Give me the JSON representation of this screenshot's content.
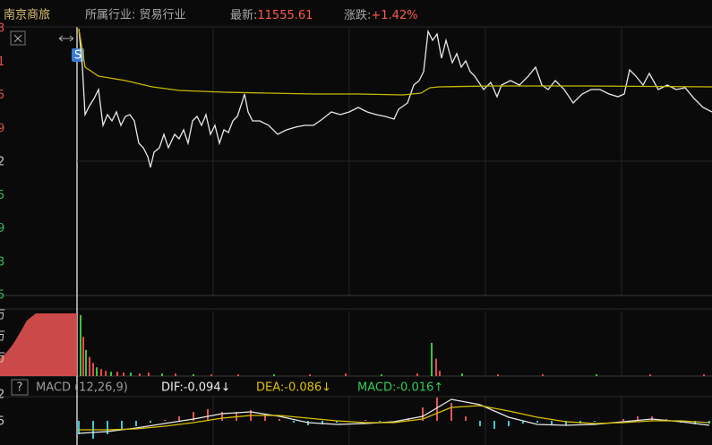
{
  "header": {
    "name": "南京商旅",
    "industry": "所属行业: 贸易行业",
    "latest_label": "最新:",
    "latest_value": "11555.61",
    "change_label": "涨跌:",
    "change_value": "+1.42%"
  },
  "price_axis_fragments": [
    "3",
    "1",
    "5",
    "9",
    "2",
    "5",
    "9",
    "3",
    "5"
  ],
  "volume_axis_fragments": [
    "万",
    "万",
    "万"
  ],
  "macd_axis_fragments": [
    "2",
    "5"
  ],
  "marker": "S",
  "macd_header": {
    "help": "?",
    "name": "MACD (12,26,9)",
    "dif": "DIF:-0.094↓",
    "dea": "DEA:-0.086↓",
    "macd": "MACD:-0.016↑"
  },
  "chart_data": [
    {
      "type": "line",
      "xlim": [
        0,
        710
      ],
      "ylim": [
        0,
        300
      ],
      "xticks": [
        152,
        304,
        456,
        608
      ],
      "yticks": [
        150,
        300
      ],
      "grid": true,
      "x": [
        2,
        6,
        9,
        14,
        19,
        24,
        29,
        34,
        39,
        44,
        49,
        54,
        59,
        64,
        69,
        74,
        79,
        82,
        86,
        92,
        97,
        102,
        109,
        114,
        119,
        124,
        129,
        134,
        139,
        144,
        149,
        154,
        159,
        164,
        169,
        174,
        179,
        184,
        187,
        191,
        196,
        204,
        214,
        224,
        234,
        244,
        254,
        264,
        274,
        284,
        294,
        304,
        314,
        324,
        334,
        344,
        354,
        359,
        369,
        376,
        382,
        387,
        392,
        397,
        402,
        407,
        412,
        419,
        424,
        429,
        434,
        439,
        444,
        454,
        462,
        469,
        474,
        484,
        494,
        504,
        512,
        519,
        526,
        534,
        544,
        554,
        564,
        574,
        584,
        594,
        604,
        611,
        617,
        624,
        632,
        639,
        649,
        659,
        669,
        679,
        689,
        699,
        709
      ],
      "series": [
        {
          "color": "#e8e8e8",
          "values": [
            298,
            255,
            202,
            212,
            220,
            230,
            190,
            202,
            195,
            205,
            190,
            200,
            202,
            195,
            170,
            165,
            155,
            143,
            160,
            165,
            180,
            165,
            180,
            175,
            185,
            170,
            195,
            200,
            190,
            202,
            180,
            190,
            170,
            185,
            182,
            195,
            200,
            215,
            225,
            205,
            195,
            195,
            190,
            180,
            185,
            188,
            190,
            190,
            197,
            205,
            202,
            205,
            210,
            205,
            202,
            200,
            197,
            208,
            215,
            235,
            240,
            250,
            295,
            285,
            292,
            265,
            285,
            260,
            270,
            255,
            262,
            250,
            245,
            230,
            238,
            222,
            235,
            240,
            235,
            245,
            255,
            235,
            230,
            240,
            230,
            215,
            225,
            230,
            230,
            225,
            222,
            225,
            252,
            245,
            235,
            248,
            230,
            235,
            230,
            232,
            220,
            210,
            205
          ]
        },
        {
          "color": "#c9b800",
          "x": [
            2,
            9,
            24,
            54,
            84,
            114,
            164,
            214,
            264,
            314,
            364,
            384,
            394,
            404,
            464,
            564,
            709
          ],
          "values": [
            298,
            255,
            245,
            240,
            233,
            229,
            227,
            226,
            225,
            225,
            224,
            226,
            232,
            233,
            234,
            234,
            233
          ]
        }
      ]
    },
    {
      "type": "bar",
      "xlim": [
        0,
        710
      ],
      "ylim": [
        0,
        75
      ],
      "xticks": [
        152,
        304,
        456,
        608
      ],
      "grid": true,
      "x": [
        4,
        7,
        10,
        14,
        18,
        22,
        27,
        32,
        38,
        45,
        52,
        60,
        70,
        80,
        95,
        110,
        130,
        150,
        180,
        220,
        260,
        300,
        340,
        380,
        396,
        401,
        405,
        430,
        470,
        520,
        580,
        640,
        700
      ],
      "values": [
        70,
        45,
        30,
        22,
        15,
        10,
        8,
        6,
        5,
        5,
        4,
        4,
        3,
        4,
        3,
        3,
        2,
        2,
        2,
        2,
        2,
        3,
        2,
        3,
        38,
        20,
        6,
        3,
        2,
        2,
        2,
        2,
        2
      ],
      "colors": [
        "#3fc43f",
        "#e84a4a",
        "#3fc43f",
        "#e84a4a",
        "#e84a4a",
        "#3fc43f",
        "#e84a4a",
        "#e84a4a",
        "#3fc43f",
        "#e84a4a",
        "#e84a4a",
        "#3fc43f",
        "#e84a4a",
        "#e84a4a",
        "#3fc43f",
        "#e84a4a",
        "#3fc43f",
        "#e84a4a",
        "#e84a4a",
        "#3fc43f",
        "#e84a4a",
        "#e84a4a",
        "#3fc43f",
        "#e84a4a",
        "#3fc43f",
        "#e84a4a",
        "#e84a4a",
        "#3fc43f",
        "#e84a4a",
        "#e84a4a",
        "#3fc43f",
        "#e84a4a",
        "#e84a4a"
      ]
    },
    {
      "type": "macd",
      "xlim": [
        0,
        710
      ],
      "ylim": [
        -27,
        27
      ],
      "xticks": [
        152,
        304,
        456,
        608
      ],
      "grid": true,
      "x": [
        2,
        18,
        34,
        50,
        66,
        82,
        98,
        114,
        130,
        146,
        162,
        178,
        194,
        210,
        226,
        242,
        258,
        274,
        290,
        306,
        322,
        338,
        354,
        370,
        386,
        402,
        418,
        434,
        450,
        466,
        482,
        498,
        514,
        530,
        546,
        562,
        578,
        594,
        610,
        626,
        642,
        658,
        674,
        690,
        706
      ],
      "values": [
        -15,
        -20,
        -15,
        -10,
        -6,
        -2,
        1,
        5,
        10,
        13,
        10,
        10,
        12,
        7,
        2,
        -2,
        -5,
        -4,
        -2,
        0,
        1,
        -1,
        0,
        3,
        15,
        26,
        20,
        5,
        -6,
        -9,
        -6,
        -3,
        -2,
        -4,
        -5,
        -3,
        -1,
        0,
        2,
        5,
        5,
        2,
        -2,
        -4,
        -3
      ],
      "up_color": "#e05555",
      "down_color": "#3cc8d0",
      "lines": [
        {
          "color": "#e8e8e8",
          "x": [
            2,
            34,
            66,
            98,
            130,
            162,
            194,
            226,
            258,
            290,
            322,
            354,
            386,
            418,
            450,
            482,
            514,
            546,
            578,
            610,
            642,
            674,
            706
          ],
          "values": [
            -14,
            -12,
            -8,
            -3,
            2,
            8,
            10,
            5,
            -2,
            -4,
            -3,
            -1,
            5,
            24,
            18,
            4,
            -4,
            -5,
            -4,
            -1,
            2,
            -1,
            -5
          ]
        },
        {
          "color": "#d8c000",
          "x": [
            2,
            34,
            66,
            98,
            130,
            162,
            194,
            226,
            258,
            290,
            322,
            354,
            386,
            418,
            450,
            482,
            514,
            546,
            578,
            610,
            642,
            674,
            706
          ],
          "values": [
            -10,
            -10,
            -9,
            -6,
            -2,
            3,
            6,
            6,
            3,
            0,
            -2,
            -2,
            2,
            15,
            17,
            11,
            4,
            -1,
            -3,
            -2,
            0,
            0,
            -2
          ]
        }
      ]
    }
  ]
}
